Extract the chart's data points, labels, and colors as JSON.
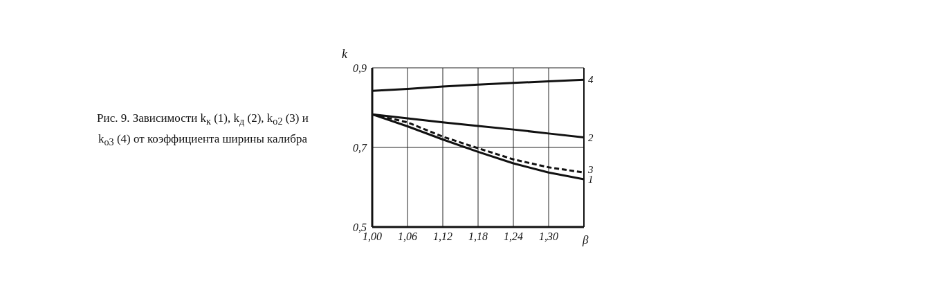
{
  "chart_data": {
    "type": "line",
    "title": "Рис. 9. Зависимости k$_{к}$ (1), k$_{д}$ (2), k$_{о2}$ (3) и k$_{о3}$ (4) от коэффициента ширины калибра",
    "xlabel": "β",
    "ylabel": "k",
    "x": [
      1.0,
      1.06,
      1.12,
      1.18,
      1.24,
      1.3,
      1.36
    ],
    "series": [
      {
        "name": "1",
        "color": "#111111",
        "values": [
          0.783,
          0.753,
          0.72,
          0.689,
          0.66,
          0.637,
          0.62
        ]
      },
      {
        "name": "2",
        "color": "#111111",
        "values": [
          0.783,
          0.773,
          0.763,
          0.754,
          0.745,
          0.735,
          0.725
        ]
      },
      {
        "name": "3",
        "color": "#111111",
        "line_style": "dashed",
        "values": [
          0.783,
          0.763,
          0.727,
          0.698,
          0.67,
          0.65,
          0.637
        ]
      },
      {
        "name": "4",
        "color": "#111111",
        "values": [
          0.842,
          0.847,
          0.853,
          0.858,
          0.862,
          0.866,
          0.87
        ]
      }
    ],
    "xlim": [
      1.0,
      1.36
    ],
    "xticks": [
      {
        "value": 1.0,
        "label": "1,00"
      },
      {
        "value": 1.06,
        "label": "1,06"
      },
      {
        "value": 1.12,
        "label": "1,12"
      },
      {
        "value": 1.18,
        "label": "1,18"
      },
      {
        "value": 1.24,
        "label": "1,24"
      },
      {
        "value": 1.3,
        "label": "1,30"
      }
    ],
    "ylim": [
      0.5,
      0.9
    ],
    "yticks": [
      {
        "value": 0.5,
        "label": "0,5"
      },
      {
        "value": 0.7,
        "label": "0,7"
      },
      {
        "value": 0.9,
        "label": "0,9"
      }
    ],
    "grid": true,
    "marker": "none",
    "line_style": "solid"
  }
}
